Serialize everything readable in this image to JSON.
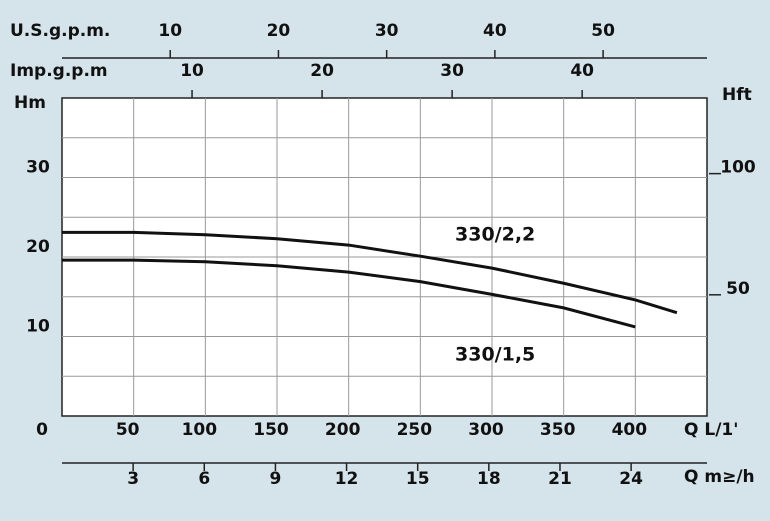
{
  "chart_data": {
    "type": "line",
    "x_label": "Q L/1'",
    "y_label": "Hm",
    "y2_label": "Hft",
    "xlim": [
      0,
      450
    ],
    "xticks": [
      0,
      50,
      100,
      150,
      200,
      250,
      300,
      350,
      400
    ],
    "ylim": [
      0,
      40
    ],
    "yticks": [
      10,
      20,
      30
    ],
    "ygrid": [
      5,
      10,
      15,
      20,
      25,
      30,
      35
    ],
    "y2lim": [
      0,
      131.2
    ],
    "y2ticks": [
      50,
      100
    ],
    "grid": true,
    "extra_x_axes": [
      {
        "label": "U.S.g.p.m.",
        "position": "top",
        "xlim": [
          0,
          59.6
        ],
        "xticks": [
          10,
          20,
          30,
          40,
          50
        ]
      },
      {
        "label": "Imp.g.p.m",
        "position": "top",
        "xlim": [
          0,
          49.6
        ],
        "xticks": [
          10,
          20,
          30,
          40
        ]
      },
      {
        "label": "Q m≥/h",
        "position": "bottom",
        "xlim": [
          0,
          27.2
        ],
        "xticks": [
          3,
          6,
          9,
          12,
          15,
          18,
          21,
          24
        ]
      }
    ],
    "series": [
      {
        "name": "330/2,2",
        "color": "#111111",
        "x": [
          0,
          50,
          100,
          150,
          200,
          250,
          300,
          350,
          400,
          429
        ],
        "values": [
          23.1,
          23.1,
          22.8,
          22.3,
          21.5,
          20.1,
          18.6,
          16.7,
          14.6,
          13.0
        ]
      },
      {
        "name": "330/1,5",
        "color": "#111111",
        "x": [
          0,
          50,
          100,
          150,
          200,
          250,
          300,
          350,
          400
        ],
        "values": [
          19.6,
          19.6,
          19.4,
          18.9,
          18.1,
          16.9,
          15.3,
          13.6,
          11.2
        ]
      }
    ]
  }
}
